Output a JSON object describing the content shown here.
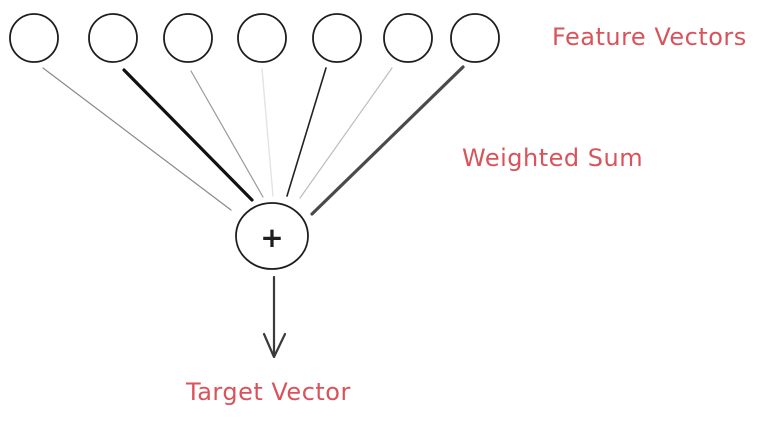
{
  "labels": {
    "feature_vectors": "Feature Vectors",
    "weighted_sum": "Weighted Sum",
    "target_vector": "Target Vector",
    "operator": "+"
  },
  "colors": {
    "label": "#d9535a",
    "stroke": "#1e1e1e"
  },
  "feature_vectors": [
    {
      "weight_color": "#8a8a8a",
      "weight_width": 1.2
    },
    {
      "weight_color": "#111111",
      "weight_width": 3.2
    },
    {
      "weight_color": "#9a9a9a",
      "weight_width": 1.2
    },
    {
      "weight_color": "#e3e3e3",
      "weight_width": 1.4
    },
    {
      "weight_color": "#222222",
      "weight_width": 1.6
    },
    {
      "weight_color": "#bdbdbd",
      "weight_width": 1.2
    },
    {
      "weight_color": "#4a4a4a",
      "weight_width": 3.2
    }
  ]
}
